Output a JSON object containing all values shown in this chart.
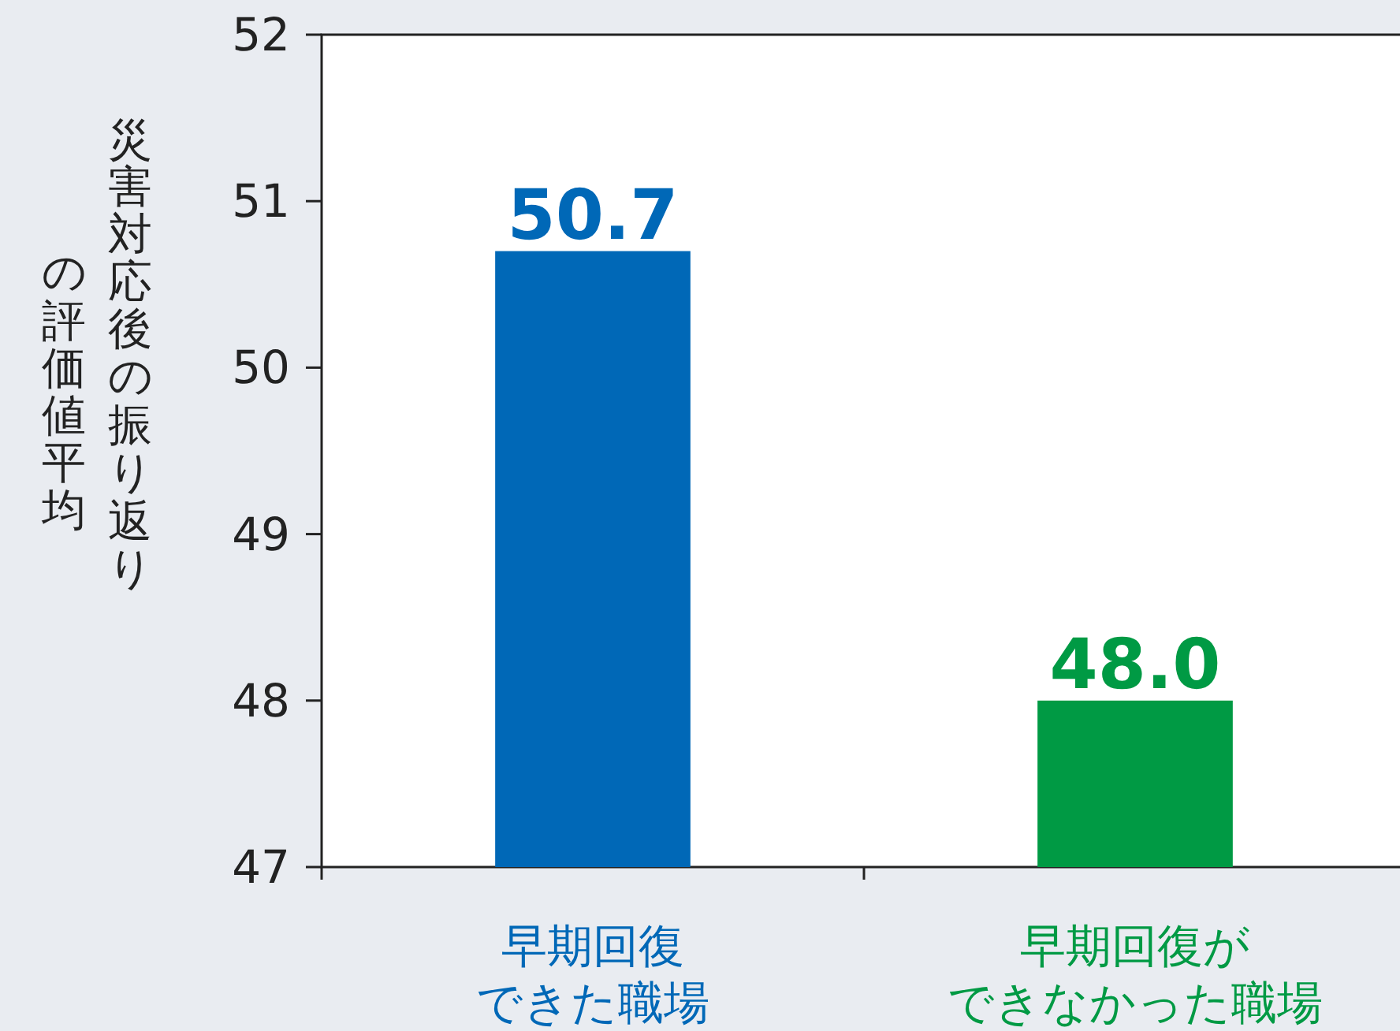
{
  "chart_data": {
    "type": "bar",
    "ylabel": "災害対応後の振り返りの評価値平均",
    "categories": [
      "早期回復できた職場",
      "早期回復ができなかった職場"
    ],
    "values": [
      50.7,
      48.0
    ],
    "colors": [
      "#0068b7",
      "#009a44"
    ],
    "value_labels": [
      "50.7",
      "48.0"
    ],
    "ylim": [
      47,
      52
    ],
    "yticks": [
      47,
      48,
      49,
      50,
      51,
      52
    ]
  }
}
